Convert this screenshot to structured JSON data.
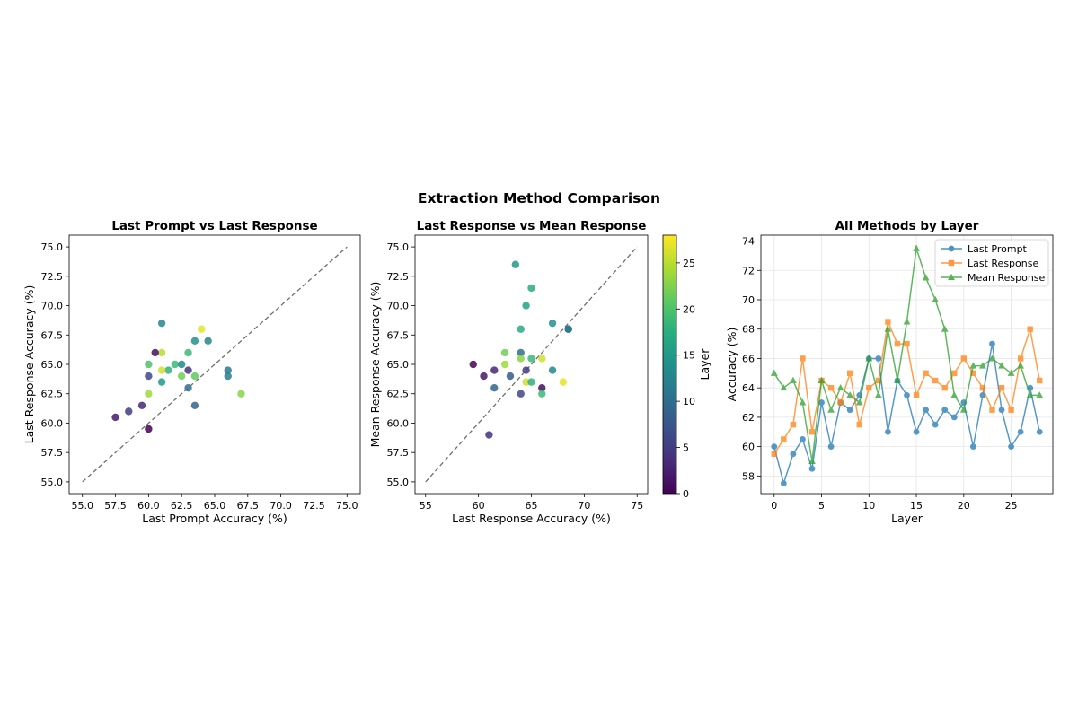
{
  "figure": {
    "suptitle": "Extraction Method Comparison"
  },
  "chart_data": [
    {
      "type": "scatter",
      "title": "Last Prompt vs Last Response",
      "xlabel": "Last Prompt Accuracy (%)",
      "ylabel": "Last Response Accuracy (%)",
      "xlim": [
        54.0,
        76.0
      ],
      "ylim": [
        54.0,
        76.0
      ],
      "xticks": [
        55.0,
        57.5,
        60.0,
        62.5,
        65.0,
        67.5,
        70.0,
        72.5,
        75.0
      ],
      "yticks": [
        55.0,
        57.5,
        60.0,
        62.5,
        65.0,
        67.5,
        70.0,
        72.5,
        75.0
      ],
      "tick_decimals": 1,
      "diagonal": [
        55,
        75
      ],
      "color_by": "Layer",
      "points": [
        {
          "x": 60.0,
          "y": 65.0,
          "layer": 20
        },
        {
          "x": 61.0,
          "y": 66.0,
          "layer": 25
        },
        {
          "x": 62.0,
          "y": 65.0,
          "layer": 19
        },
        {
          "x": 62.5,
          "y": 65.0,
          "layer": 13
        },
        {
          "x": 61.5,
          "y": 64.5,
          "layer": 18
        },
        {
          "x": 61.0,
          "y": 64.5,
          "layer": 26
        },
        {
          "x": 61.0,
          "y": 68.5,
          "layer": 13
        },
        {
          "x": 64.0,
          "y": 68.0,
          "layer": 27
        },
        {
          "x": 63.0,
          "y": 66.0,
          "layer": 19
        },
        {
          "x": 63.5,
          "y": 67.0,
          "layer": 14
        },
        {
          "x": 64.5,
          "y": 67.0,
          "layer": 13
        },
        {
          "x": 60.5,
          "y": 66.0,
          "layer": 1
        },
        {
          "x": 60.0,
          "y": 64.0,
          "layer": 6
        },
        {
          "x": 63.0,
          "y": 64.5,
          "layer": 4
        },
        {
          "x": 62.5,
          "y": 64.0,
          "layer": 22
        },
        {
          "x": 63.5,
          "y": 64.0,
          "layer": 21
        },
        {
          "x": 61.0,
          "y": 63.5,
          "layer": 15
        },
        {
          "x": 63.0,
          "y": 63.0,
          "layer": 10
        },
        {
          "x": 60.0,
          "y": 62.5,
          "layer": 24
        },
        {
          "x": 59.5,
          "y": 61.5,
          "layer": 3
        },
        {
          "x": 58.5,
          "y": 61.0,
          "layer": 5
        },
        {
          "x": 57.5,
          "y": 60.5,
          "layer": 2
        },
        {
          "x": 60.0,
          "y": 59.5,
          "layer": 0
        },
        {
          "x": 63.5,
          "y": 61.5,
          "layer": 9
        },
        {
          "x": 66.0,
          "y": 64.5,
          "layer": 11
        },
        {
          "x": 66.0,
          "y": 64.0,
          "layer": 12
        },
        {
          "x": 67.0,
          "y": 62.5,
          "layer": 23
        }
      ]
    },
    {
      "type": "scatter",
      "title": "Last Response vs Mean Response",
      "xlabel": "Last Response Accuracy (%)",
      "ylabel": "Mean Response Accuracy (%)",
      "xlim": [
        54.0,
        76.0
      ],
      "ylim": [
        54.0,
        76.0
      ],
      "xticks": [
        55,
        60,
        65,
        70,
        75
      ],
      "yticks": [
        55.0,
        57.5,
        60.0,
        62.5,
        65.0,
        67.5,
        70.0,
        72.5,
        75.0
      ],
      "xtick_decimals": 0,
      "tick_decimals": 1,
      "diagonal": [
        55,
        75
      ],
      "color_by": "Layer",
      "points": [
        {
          "x": 59.5,
          "y": 65.0,
          "layer": 0
        },
        {
          "x": 60.5,
          "y": 64.0,
          "layer": 2
        },
        {
          "x": 61.5,
          "y": 64.5,
          "layer": 3
        },
        {
          "x": 61.0,
          "y": 59.0,
          "layer": 4
        },
        {
          "x": 61.5,
          "y": 63.0,
          "layer": 9
        },
        {
          "x": 62.5,
          "y": 66.0,
          "layer": 22
        },
        {
          "x": 62.5,
          "y": 65.0,
          "layer": 24
        },
        {
          "x": 63.0,
          "y": 64.0,
          "layer": 8
        },
        {
          "x": 63.5,
          "y": 73.5,
          "layer": 15
        },
        {
          "x": 64.0,
          "y": 68.0,
          "layer": 17
        },
        {
          "x": 64.0,
          "y": 66.0,
          "layer": 10
        },
        {
          "x": 64.0,
          "y": 65.5,
          "layer": 23
        },
        {
          "x": 64.0,
          "y": 62.5,
          "layer": 6
        },
        {
          "x": 64.5,
          "y": 70.0,
          "layer": 16
        },
        {
          "x": 64.5,
          "y": 64.5,
          "layer": 5
        },
        {
          "x": 64.5,
          "y": 63.5,
          "layer": 26
        },
        {
          "x": 65.0,
          "y": 71.5,
          "layer": 17
        },
        {
          "x": 65.0,
          "y": 65.5,
          "layer": 19
        },
        {
          "x": 65.0,
          "y": 63.5,
          "layer": 18
        },
        {
          "x": 66.0,
          "y": 65.5,
          "layer": 26
        },
        {
          "x": 66.0,
          "y": 63.0,
          "layer": 1
        },
        {
          "x": 66.0,
          "y": 62.5,
          "layer": 19
        },
        {
          "x": 67.0,
          "y": 68.5,
          "layer": 14
        },
        {
          "x": 67.0,
          "y": 64.5,
          "layer": 13
        },
        {
          "x": 68.0,
          "y": 63.5,
          "layer": 27
        },
        {
          "x": 68.5,
          "y": 68.0,
          "layer": 12
        },
        {
          "x": 68.5,
          "y": 68.0,
          "layer": 11
        }
      ],
      "colorbar": {
        "label": "Layer",
        "min": 0,
        "max": 28,
        "ticks": [
          0,
          5,
          10,
          15,
          20,
          25
        ]
      }
    },
    {
      "type": "line",
      "title": "All Methods by Layer",
      "xlabel": "Layer",
      "ylabel": "Accuracy (%)",
      "xlim": [
        -1.4,
        29.4
      ],
      "ylim": [
        56.8,
        74.4
      ],
      "xticks": [
        0,
        5,
        10,
        15,
        20,
        25
      ],
      "yticks": [
        58,
        60,
        62,
        64,
        66,
        68,
        70,
        72,
        74
      ],
      "grid": true,
      "legend_position": "top-right",
      "x": [
        0,
        1,
        2,
        3,
        4,
        5,
        6,
        7,
        8,
        9,
        10,
        11,
        12,
        13,
        14,
        15,
        16,
        17,
        18,
        19,
        20,
        21,
        22,
        23,
        24,
        25,
        26,
        27,
        28
      ],
      "series": [
        {
          "name": "Last Prompt",
          "color": "#1f77b4",
          "marker": "circle",
          "values": [
            60.0,
            57.5,
            59.5,
            60.5,
            58.5,
            63.0,
            60.0,
            63.0,
            62.5,
            63.5,
            66.0,
            66.0,
            61.0,
            64.5,
            63.5,
            61.0,
            62.5,
            61.5,
            62.5,
            62.0,
            63.0,
            60.0,
            63.5,
            67.0,
            62.5,
            60.0,
            61.0,
            64.0,
            61.0
          ]
        },
        {
          "name": "Last Response",
          "color": "#ff7f0e",
          "marker": "square",
          "values": [
            59.5,
            60.5,
            61.5,
            66.0,
            61.0,
            64.5,
            64.0,
            63.0,
            65.0,
            61.5,
            64.0,
            64.5,
            68.5,
            67.0,
            67.0,
            63.5,
            65.0,
            64.5,
            64.0,
            65.0,
            66.0,
            65.0,
            64.0,
            62.5,
            64.0,
            62.5,
            66.0,
            68.0,
            64.5
          ]
        },
        {
          "name": "Mean Response",
          "color": "#2ca02c",
          "marker": "triangle",
          "values": [
            65.0,
            64.0,
            64.5,
            63.0,
            59.0,
            64.5,
            62.5,
            64.0,
            63.5,
            63.0,
            66.0,
            63.5,
            68.0,
            64.5,
            68.5,
            73.5,
            71.5,
            70.0,
            68.0,
            63.5,
            62.5,
            65.5,
            65.5,
            66.0,
            65.5,
            65.0,
            65.5,
            63.5,
            63.5
          ]
        }
      ]
    }
  ]
}
